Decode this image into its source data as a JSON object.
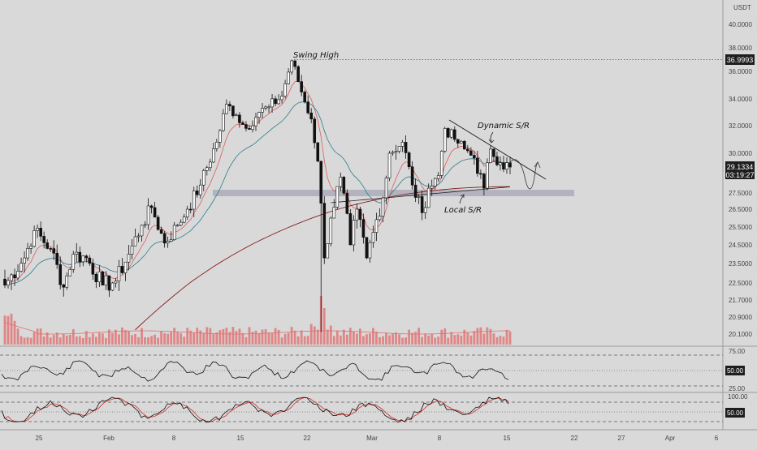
{
  "header": {
    "currency": "USDT"
  },
  "annotations": {
    "swing_high": "Swing High",
    "dynamic_sr": "Dynamic S/R",
    "local_sr": "Local S/R"
  },
  "badges": {
    "swing_high_price": "36.9993",
    "last_price": "29.1334",
    "countdown": "03:19:27"
  },
  "colors": {
    "background": "#d9d9d9",
    "up": "#ffffff",
    "down": "#111111",
    "ema_fast": "#e05a5a",
    "ema_slow": "#2a7d8c",
    "ma_long": "#8a1c1c",
    "zone": "#a6a6b5",
    "rsi_line": "#111111",
    "stoch_k": "#111111",
    "stoch_d": "#d32f2f",
    "volume": "#e07070"
  },
  "chart_data": {
    "type": "candlestick",
    "y_axis": {
      "ticks": [
        "40.0000",
        "38.0000",
        "36.0000",
        "34.0000",
        "32.0000",
        "30.0000",
        "27.5000",
        "26.5000",
        "25.5000",
        "24.5000",
        "23.5000",
        "22.5000",
        "21.7000",
        "20.9000",
        "20.1000"
      ]
    },
    "x_axis": {
      "ticks": [
        "25",
        "Feb",
        "8",
        "15",
        "22",
        "Mar",
        "8",
        "15",
        "22",
        "27",
        "Apr",
        "6"
      ]
    },
    "rsi": {
      "ticks": [
        "75.00",
        "25.00"
      ],
      "value_label": "50.00"
    },
    "stoch": {
      "ticks": [
        "100.00"
      ],
      "value_label": "50.00"
    },
    "price_series": {
      "interval_count": 156,
      "anchors": [
        [
          0,
          22.4
        ],
        [
          6,
          23.8
        ],
        [
          9,
          25.3
        ],
        [
          14,
          24.3
        ],
        [
          18,
          22.3
        ],
        [
          21,
          24.0
        ],
        [
          25,
          23.8
        ],
        [
          30,
          22.4
        ],
        [
          34,
          22.6
        ],
        [
          38,
          24.0
        ],
        [
          42,
          25.6
        ],
        [
          45,
          26.6
        ],
        [
          49,
          24.6
        ],
        [
          53,
          25.6
        ],
        [
          56,
          26.5
        ],
        [
          60,
          28.0
        ],
        [
          65,
          30.8
        ],
        [
          68,
          33.6
        ],
        [
          71,
          32.8
        ],
        [
          74,
          31.8
        ],
        [
          78,
          33.0
        ],
        [
          81,
          33.4
        ],
        [
          85,
          34.2
        ],
        [
          88,
          36.9
        ],
        [
          91,
          34.5
        ],
        [
          94,
          32.5
        ],
        [
          96,
          29.5
        ],
        [
          98,
          23.8
        ],
        [
          100,
          26.0
        ],
        [
          103,
          28.5
        ],
        [
          106,
          24.5
        ],
        [
          108,
          26.5
        ],
        [
          111,
          23.8
        ],
        [
          113,
          25.2
        ],
        [
          116,
          27.2
        ],
        [
          118,
          30.0
        ],
        [
          122,
          30.8
        ],
        [
          125,
          28.0
        ],
        [
          128,
          26.3
        ],
        [
          130,
          27.8
        ],
        [
          133,
          28.6
        ],
        [
          135,
          31.8
        ],
        [
          138,
          31.0
        ],
        [
          141,
          30.3
        ],
        [
          144,
          29.7
        ],
        [
          147,
          27.8
        ],
        [
          149,
          30.3
        ],
        [
          152,
          29.4
        ],
        [
          155,
          29.13
        ]
      ],
      "swing_high": 36.9993,
      "support_zone": [
        27.3,
        27.7
      ]
    }
  }
}
